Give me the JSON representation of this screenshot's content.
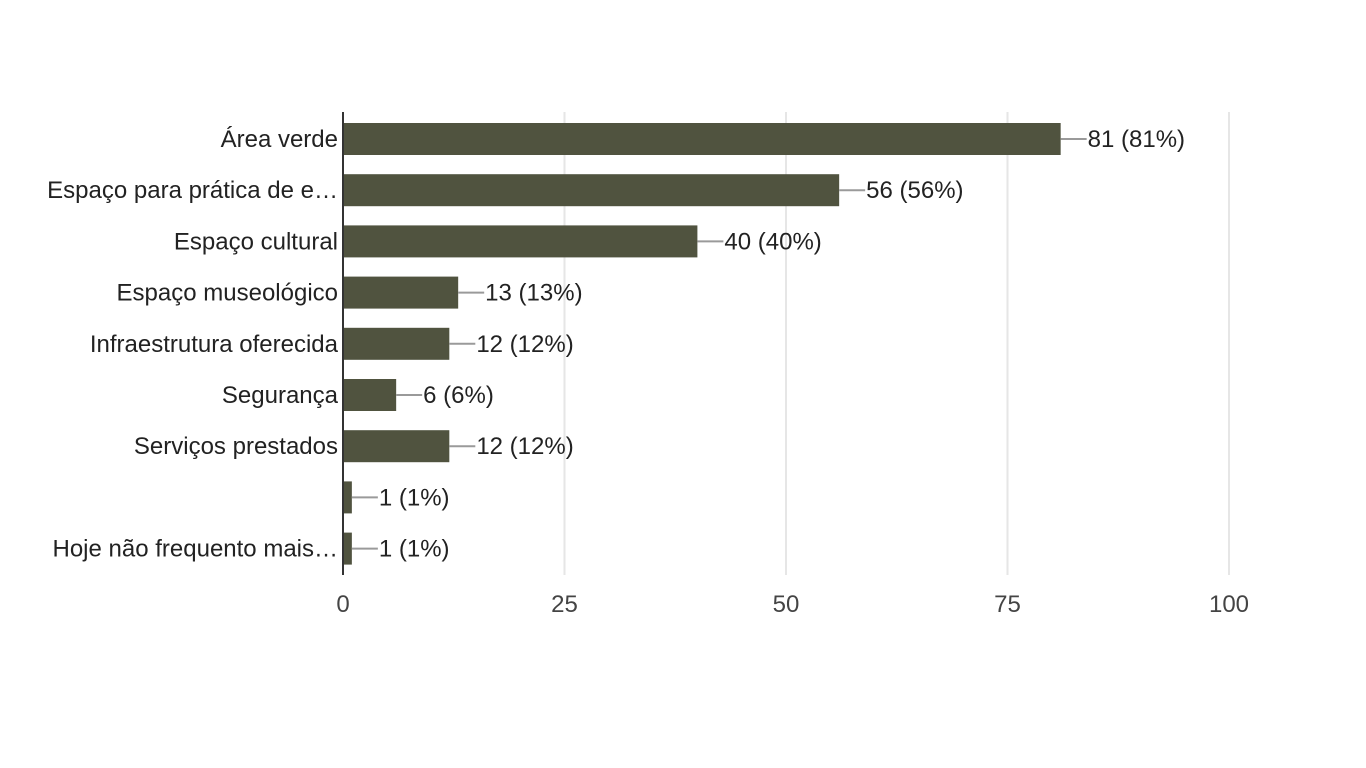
{
  "chart_data": {
    "type": "bar",
    "orientation": "horizontal",
    "title": "",
    "xlabel": "",
    "ylabel": "",
    "xlim": [
      0,
      100
    ],
    "grid": true,
    "bar_color": "#50533f",
    "categories": [
      "Área verde",
      "Espaço para prática de e…",
      "Espaço cultural",
      "Espaço museológico",
      "Infraestrutura oferecida",
      "Segurança",
      "Serviços prestados",
      "",
      "Hoje não frequento mais…"
    ],
    "values": [
      81,
      56,
      40,
      13,
      12,
      6,
      12,
      1,
      1
    ],
    "data_labels": [
      "81 (81%)",
      "56 (56%)",
      "40 (40%)",
      "13 (13%)",
      "12 (12%)",
      "6 (6%)",
      "12 (12%)",
      "1 (1%)",
      "1 (1%)"
    ],
    "x_ticks": [
      0,
      25,
      50,
      75,
      100
    ],
    "x_tick_labels": [
      "0",
      "25",
      "50",
      "75",
      "100"
    ]
  }
}
